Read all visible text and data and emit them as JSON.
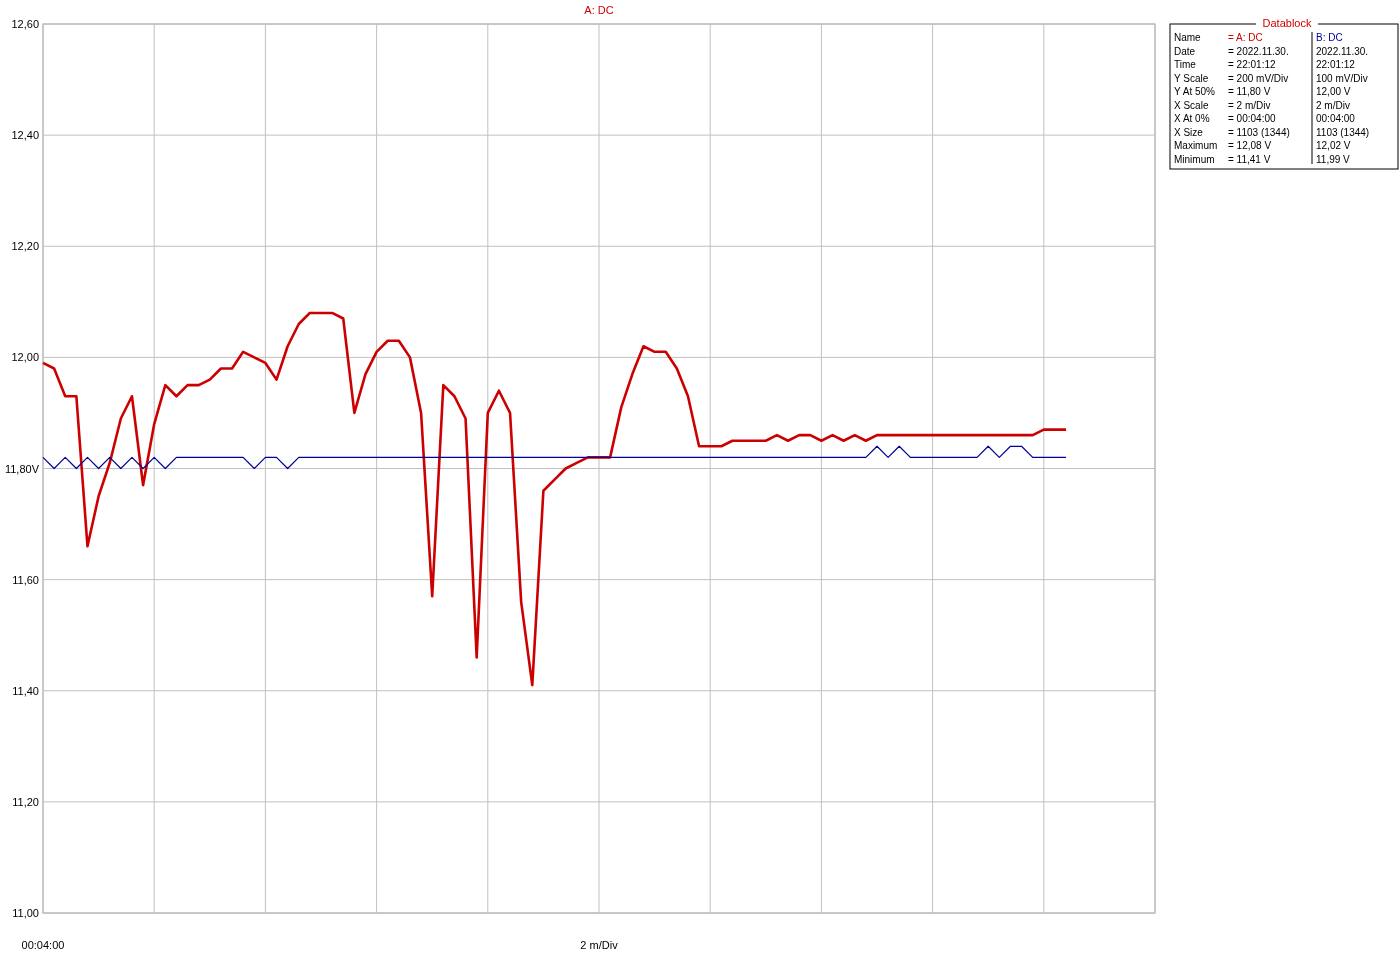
{
  "chart_data": [
    {
      "type": "line",
      "title": "A: DC",
      "xlabel": "2 m/Div",
      "annotations": [
        "00:04:00"
      ],
      "ylim": [
        11,
        12.6
      ],
      "categories": [
        null,
        null,
        null,
        null,
        null,
        null,
        null,
        null,
        null,
        null,
        null,
        null,
        null,
        null,
        null,
        null,
        null,
        null,
        null,
        null,
        null,
        null,
        null,
        null,
        null,
        null,
        null,
        null,
        null,
        null,
        null,
        null,
        null,
        null,
        null,
        null,
        null,
        null,
        null,
        null,
        null,
        null,
        null,
        null,
        null,
        null,
        null,
        null,
        null,
        null,
        null,
        null,
        null,
        null,
        null,
        null,
        null,
        null,
        null,
        null,
        null,
        null,
        null,
        null,
        null,
        null,
        null,
        null,
        null,
        null,
        null,
        null,
        null,
        null,
        null,
        null,
        null,
        null,
        null,
        null,
        null,
        null,
        null,
        null,
        null,
        null,
        null,
        null,
        null,
        null,
        null,
        null,
        null,
        null,
        null,
        null,
        null,
        null,
        null,
        null,
        null
      ],
      "yticks": [
        {
          "value": 11,
          "label": "11,00"
        },
        {
          "value": 11.2,
          "label": "11,20"
        },
        {
          "value": 11.4,
          "label": "11,40"
        },
        {
          "value": 11.6,
          "label": "11,60"
        },
        {
          "value": 11.8,
          "label": "11,80V"
        },
        {
          "value": 12,
          "label": "12,00"
        },
        {
          "value": 12.2,
          "label": "12,20"
        },
        {
          "value": 12.4,
          "label": "12,40"
        },
        {
          "value": 12.6,
          "label": "12,60"
        }
      ],
      "grid": true,
      "series": [
        {
          "color": "#cc0000",
          "values": [
            11.99,
            11.98,
            11.93,
            11.93,
            11.66,
            11.75,
            11.81,
            11.89,
            11.93,
            11.77,
            11.88,
            11.95,
            11.93,
            11.95,
            11.95,
            11.96,
            11.98,
            11.98,
            12.01,
            12.0,
            11.99,
            11.96,
            12.02,
            12.06,
            12.08,
            12.08,
            12.08,
            12.07,
            11.9,
            11.97,
            12.01,
            12.03,
            12.03,
            12.0,
            11.9,
            11.57,
            11.95,
            11.93,
            11.89,
            11.46,
            11.9,
            11.94,
            11.9,
            11.56,
            11.41,
            11.76,
            11.78,
            11.8,
            11.81,
            11.82,
            11.82,
            11.82,
            11.91,
            11.97,
            12.02,
            12.01,
            12.01,
            11.98,
            11.93,
            11.84,
            11.84,
            11.84,
            11.85,
            11.85,
            11.85,
            11.85,
            11.86,
            11.85,
            11.86,
            11.86,
            11.85,
            11.86,
            11.85,
            11.86,
            11.85,
            11.86,
            11.86,
            11.86,
            11.86,
            11.86,
            11.86,
            11.86,
            11.86,
            11.86,
            11.86,
            11.86,
            11.86,
            11.86,
            11.86,
            11.86,
            11.87,
            11.87,
            11.87,
            null,
            null,
            null,
            null,
            null,
            null,
            null,
            null
          ]
        },
        {
          "color": "#000099",
          "values": [
            11.82,
            11.8,
            11.82,
            11.8,
            11.82,
            11.8,
            11.82,
            11.8,
            11.82,
            11.8,
            11.82,
            11.8,
            11.82,
            11.82,
            11.82,
            11.82,
            11.82,
            11.82,
            11.82,
            11.8,
            11.82,
            11.82,
            11.8,
            11.82,
            11.82,
            11.82,
            11.82,
            11.82,
            11.82,
            11.82,
            11.82,
            11.82,
            11.82,
            11.82,
            11.82,
            11.82,
            11.82,
            11.82,
            11.82,
            11.82,
            11.82,
            11.82,
            11.82,
            11.82,
            11.82,
            11.82,
            11.82,
            11.82,
            11.82,
            11.82,
            11.82,
            11.82,
            11.82,
            11.82,
            11.82,
            11.82,
            11.82,
            11.82,
            11.82,
            11.82,
            11.82,
            11.82,
            11.82,
            11.82,
            11.82,
            11.82,
            11.82,
            11.82,
            11.82,
            11.82,
            11.82,
            11.82,
            11.82,
            11.82,
            11.82,
            11.84,
            11.82,
            11.84,
            11.82,
            11.82,
            11.82,
            11.82,
            11.82,
            11.82,
            11.82,
            11.84,
            11.82,
            11.84,
            11.84,
            11.82,
            11.82,
            11.82,
            11.82,
            null,
            null,
            null,
            null,
            null,
            null,
            null,
            null
          ]
        }
      ]
    },
    {
      "type": "other",
      "title": "Datablock",
      "annotations": [
        "Name",
        "= A: DC",
        "B: DC",
        "Date",
        "= 2022.11.30.",
        "2022.11.30.",
        "Time",
        "= 22:01:12",
        "22:01:12",
        "Y Scale",
        "= 200 mV/Div",
        "100 mV/Div",
        "Y At 50%",
        "= 11,80 V",
        "12,00 V",
        "X Scale",
        "= 2 m/Div",
        "2 m/Div",
        "X At 0%",
        "= 00:04:00",
        "00:04:00",
        "X Size",
        "= 1103 (1344)",
        "1103 (1344)",
        "Maximum",
        "= 12,08 V",
        "12,02 V",
        "Minimum",
        "= 11,41 V",
        "11,99 V"
      ]
    }
  ]
}
